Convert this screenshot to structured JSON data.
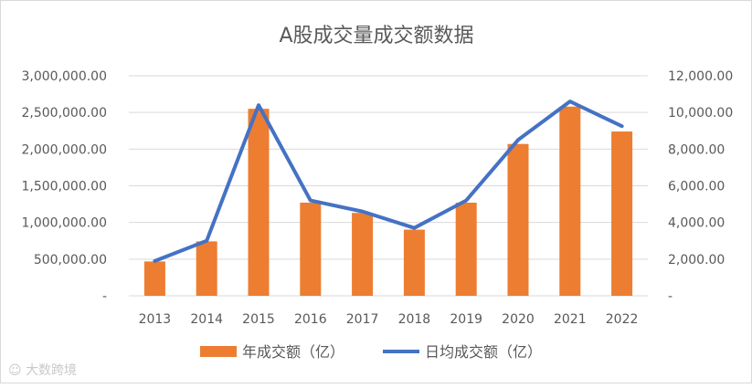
{
  "chart_data": {
    "type": "bar+line",
    "title": "A股成交量成交额数据",
    "categories": [
      "2013",
      "2014",
      "2015",
      "2016",
      "2017",
      "2018",
      "2019",
      "2020",
      "2021",
      "2022"
    ],
    "series": [
      {
        "name": "年成交额（亿）",
        "type": "bar",
        "axis": "left",
        "color": "#ed7d31",
        "values": [
          468000,
          742000,
          2550000,
          1270000,
          1130000,
          902000,
          1270000,
          2070000,
          2580000,
          2240000
        ]
      },
      {
        "name": "日均成交额（亿）",
        "type": "line",
        "axis": "right",
        "color": "#4472c4",
        "values": [
          1900,
          3000,
          10400,
          5200,
          4600,
          3700,
          5200,
          8500,
          10600,
          9250
        ]
      }
    ],
    "y_left": {
      "ylim": [
        0,
        3000000
      ],
      "ticks": [
        "-",
        "500,000.00",
        "1,000,000.00",
        "1,500,000.00",
        "2,000,000.00",
        "2,500,000.00",
        "3,000,000.00"
      ]
    },
    "y_right": {
      "ylim": [
        0,
        12000
      ],
      "ticks": [
        "-",
        "2,000.00",
        "4,000.00",
        "6,000.00",
        "8,000.00",
        "10,000.00",
        "12,000.00"
      ]
    },
    "grid": true,
    "legend_position": "bottom"
  },
  "watermark": "大数跨境"
}
